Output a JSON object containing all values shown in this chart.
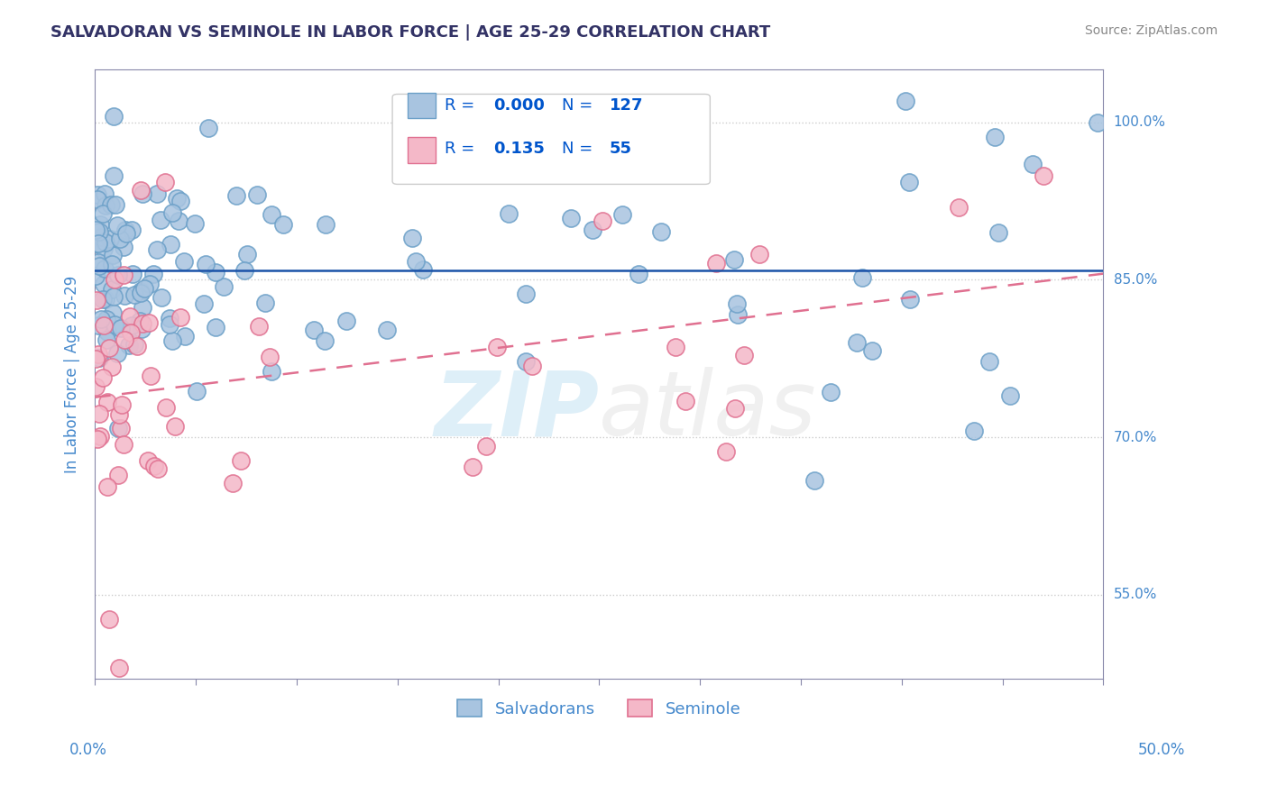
{
  "title": "SALVADORAN VS SEMINOLE IN LABOR FORCE | AGE 25-29 CORRELATION CHART",
  "source": "Source: ZipAtlas.com",
  "ylabel": "In Labor Force | Age 25-29",
  "xmin": 0.0,
  "xmax": 0.5,
  "ymin": 0.47,
  "ymax": 1.05,
  "yticks": [
    0.55,
    0.7,
    0.85,
    1.0
  ],
  "ytick_labels": [
    "55.0%",
    "70.0%",
    "85.0%",
    "100.0%"
  ],
  "blue_R": "0.000",
  "blue_N": "127",
  "pink_R": "0.135",
  "pink_N": "55",
  "legend_label_blue": "Salvadorans",
  "legend_label_pink": "Seminole",
  "blue_color": "#a8c4e0",
  "blue_edge": "#6ca0c8",
  "pink_color": "#f4b8c8",
  "pink_edge": "#e07090",
  "blue_line_color": "#1a52a8",
  "pink_line_color": "#e07090",
  "watermark_color_zip": "#6cb8e0",
  "watermark_color_atlas": "#bbbbbb",
  "background": "#ffffff",
  "grid_color": "#cccccc",
  "axis_color": "#8888aa",
  "label_color": "#4488cc",
  "legend_text_color": "#0055cc",
  "title_color": "#333366"
}
